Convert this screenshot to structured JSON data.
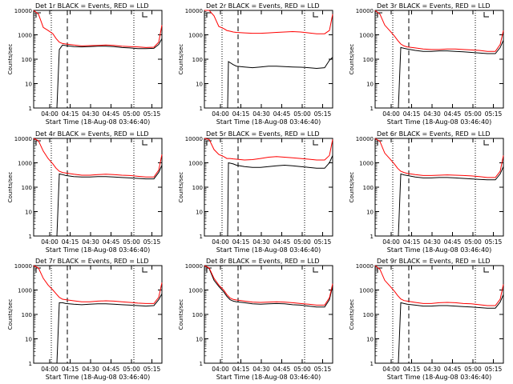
{
  "xaxis_label": "Start Time (18-Aug-08 03:46:40)",
  "ylabel": "Counts/sec",
  "title_suffix": "BLACK = Events, RED = LLD",
  "y_ticks": [
    "1",
    "10",
    "100",
    "1000",
    "10000"
  ],
  "colors": {
    "events": "#000000",
    "lld": "#ff0000"
  },
  "chart_data": [
    {
      "type": "line",
      "title": "Det 1r BLACK = Events, RED = LLD",
      "x_ticks": [
        "04:00",
        "04:15",
        "04:30",
        "04:45",
        "05:00",
        "05:15"
      ],
      "ylim": [
        1,
        10000
      ],
      "yscale": "log",
      "series": [
        {
          "name": "Events",
          "x": [
            14.5,
            16,
            18,
            20,
            25,
            30,
            35,
            40,
            45,
            50,
            55,
            60,
            65,
            70,
            75,
            78,
            80
          ],
          "y": [
            1,
            250,
            380,
            360,
            330,
            320,
            330,
            340,
            340,
            330,
            300,
            290,
            270,
            270,
            280,
            400,
            700
          ]
        },
        {
          "name": "LLD",
          "x": [
            0,
            3,
            6,
            9,
            12,
            14,
            16,
            18,
            20,
            25,
            30,
            35,
            40,
            45,
            50,
            55,
            60,
            65,
            70,
            75,
            78,
            80
          ],
          "y": [
            10000,
            7000,
            2000,
            1500,
            1100,
            700,
            500,
            440,
            420,
            380,
            350,
            360,
            370,
            380,
            370,
            340,
            330,
            320,
            300,
            310,
            500,
            2500
          ]
        }
      ]
    },
    {
      "type": "line",
      "title": "Det 2r BLACK = Events, RED = LLD",
      "x_ticks": [
        "04:00",
        "04:15",
        "04:30",
        "04:45",
        "05:00",
        "05:15"
      ],
      "ylim": [
        1,
        10000
      ],
      "yscale": "log",
      "series": [
        {
          "name": "Events",
          "x": [
            14.5,
            15,
            18,
            20,
            25,
            30,
            35,
            40,
            45,
            50,
            55,
            60,
            65,
            70,
            75,
            78,
            80
          ],
          "y": [
            1,
            80,
            60,
            52,
            48,
            45,
            48,
            52,
            52,
            50,
            48,
            47,
            45,
            42,
            45,
            90,
            120
          ]
        },
        {
          "name": "LLD",
          "x": [
            0,
            3,
            6,
            9,
            12,
            14,
            16,
            18,
            20,
            25,
            30,
            35,
            40,
            45,
            50,
            55,
            60,
            65,
            70,
            75,
            78,
            80
          ],
          "y": [
            10000,
            10000,
            6000,
            2200,
            1800,
            1500,
            1400,
            1300,
            1250,
            1200,
            1150,
            1150,
            1200,
            1250,
            1300,
            1350,
            1300,
            1200,
            1100,
            1100,
            1500,
            7000
          ]
        }
      ]
    },
    {
      "type": "line",
      "title": "Det 3r BLACK = Events, RED = LLD",
      "x_ticks": [
        "04:00",
        "04:15",
        "04:30",
        "04:45",
        "05:00",
        "05:15"
      ],
      "ylim": [
        1,
        10000
      ],
      "yscale": "log",
      "series": [
        {
          "name": "Events",
          "x": [
            14.5,
            16,
            18,
            20,
            25,
            30,
            35,
            40,
            45,
            50,
            55,
            60,
            65,
            70,
            75,
            78,
            80
          ],
          "y": [
            1,
            300,
            280,
            260,
            230,
            210,
            210,
            220,
            220,
            210,
            200,
            190,
            180,
            170,
            170,
            300,
            600
          ]
        },
        {
          "name": "LLD",
          "x": [
            0,
            3,
            6,
            9,
            12,
            14,
            16,
            18,
            20,
            25,
            30,
            35,
            40,
            45,
            50,
            55,
            60,
            65,
            70,
            75,
            78,
            80
          ],
          "y": [
            10000,
            7000,
            2500,
            1500,
            900,
            600,
            420,
            350,
            320,
            290,
            260,
            250,
            250,
            260,
            260,
            250,
            240,
            230,
            210,
            210,
            400,
            1500
          ]
        }
      ]
    },
    {
      "type": "line",
      "title": "Det 4r BLACK = Events, RED = LLD",
      "x_ticks": [
        "04:00",
        "04:15",
        "04:30",
        "04:45",
        "05:00",
        "05:15"
      ],
      "ylim": [
        1,
        10000
      ],
      "yscale": "log",
      "series": [
        {
          "name": "Events",
          "x": [
            14.5,
            16,
            18,
            20,
            25,
            30,
            35,
            40,
            45,
            50,
            55,
            60,
            65,
            70,
            75,
            78,
            80
          ],
          "y": [
            1,
            350,
            330,
            300,
            270,
            260,
            260,
            270,
            270,
            260,
            250,
            240,
            230,
            220,
            220,
            400,
            800
          ]
        },
        {
          "name": "LLD",
          "x": [
            0,
            3,
            6,
            9,
            12,
            14,
            16,
            18,
            20,
            25,
            30,
            35,
            40,
            45,
            50,
            55,
            60,
            65,
            70,
            75,
            78,
            80
          ],
          "y": [
            10000,
            8000,
            3000,
            1500,
            900,
            600,
            450,
            400,
            380,
            340,
            310,
            310,
            330,
            340,
            330,
            310,
            300,
            280,
            260,
            260,
            500,
            2200
          ]
        }
      ]
    },
    {
      "type": "line",
      "title": "Det 5r BLACK = Events, RED = LLD",
      "x_ticks": [
        "04:00",
        "04:15",
        "04:30",
        "04:45",
        "05:00",
        "05:15"
      ],
      "ylim": [
        1,
        10000
      ],
      "yscale": "log",
      "series": [
        {
          "name": "Events",
          "x": [
            14.5,
            15,
            18,
            20,
            25,
            30,
            35,
            40,
            45,
            50,
            55,
            60,
            65,
            70,
            75,
            78,
            80
          ],
          "y": [
            1,
            1000,
            900,
            800,
            700,
            650,
            650,
            700,
            750,
            800,
            750,
            700,
            650,
            600,
            600,
            1000,
            2000
          ]
        },
        {
          "name": "LLD",
          "x": [
            0,
            3,
            6,
            9,
            12,
            14,
            16,
            18,
            20,
            25,
            30,
            35,
            40,
            45,
            50,
            55,
            60,
            65,
            70,
            75,
            78,
            80
          ],
          "y": [
            10000,
            9000,
            3500,
            2200,
            1800,
            1500,
            1500,
            1450,
            1400,
            1300,
            1350,
            1500,
            1700,
            1800,
            1700,
            1600,
            1500,
            1400,
            1300,
            1300,
            2000,
            9000
          ]
        }
      ]
    },
    {
      "type": "line",
      "title": "Det 6r BLACK = Events, RED = LLD",
      "x_ticks": [
        "04:00",
        "04:15",
        "04:30",
        "04:45",
        "05:00",
        "05:15"
      ],
      "ylim": [
        1,
        10000
      ],
      "yscale": "log",
      "series": [
        {
          "name": "Events",
          "x": [
            14.5,
            16,
            18,
            20,
            25,
            30,
            35,
            40,
            45,
            50,
            55,
            60,
            65,
            70,
            75,
            78,
            80
          ],
          "y": [
            1,
            350,
            320,
            300,
            260,
            240,
            240,
            250,
            250,
            240,
            230,
            220,
            210,
            200,
            200,
            350,
            700
          ]
        },
        {
          "name": "LLD",
          "x": [
            0,
            3,
            6,
            9,
            12,
            14,
            16,
            18,
            20,
            25,
            30,
            35,
            40,
            45,
            50,
            55,
            60,
            65,
            70,
            75,
            78,
            80
          ],
          "y": [
            10000,
            7500,
            2500,
            1500,
            900,
            600,
            450,
            400,
            370,
            330,
            300,
            300,
            310,
            320,
            310,
            300,
            290,
            270,
            250,
            250,
            450,
            2000
          ]
        }
      ]
    },
    {
      "type": "line",
      "title": "Det 7r BLACK = Events, RED = LLD",
      "x_ticks": [
        "04:00",
        "04:15",
        "04:30",
        "04:45",
        "05:00",
        "05:15"
      ],
      "ylim": [
        1,
        10000
      ],
      "yscale": "log",
      "series": [
        {
          "name": "Events",
          "x": [
            14.5,
            16,
            18,
            20,
            25,
            30,
            35,
            40,
            45,
            50,
            55,
            60,
            65,
            70,
            75,
            78,
            80
          ],
          "y": [
            1,
            300,
            300,
            280,
            260,
            250,
            260,
            270,
            270,
            260,
            250,
            240,
            230,
            220,
            230,
            400,
            700
          ]
        },
        {
          "name": "LLD",
          "x": [
            0,
            3,
            6,
            9,
            12,
            14,
            16,
            18,
            20,
            25,
            30,
            35,
            40,
            45,
            50,
            55,
            60,
            65,
            70,
            75,
            78,
            80
          ],
          "y": [
            10000,
            8000,
            3000,
            1600,
            1000,
            700,
            500,
            420,
            400,
            360,
            330,
            330,
            350,
            360,
            350,
            330,
            310,
            290,
            280,
            280,
            500,
            2000
          ]
        }
      ]
    },
    {
      "type": "line",
      "title": "Det 8r BLACK = Events, RED = LLD",
      "x_ticks": [
        "04:00",
        "04:15",
        "04:30",
        "04:45",
        "05:00",
        "05:15"
      ],
      "ylim": [
        1,
        10000
      ],
      "yscale": "log",
      "series": [
        {
          "name": "Events",
          "x": [
            0,
            3,
            6,
            9,
            12,
            14,
            16,
            18,
            20,
            25,
            30,
            35,
            40,
            45,
            50,
            55,
            60,
            65,
            70,
            75,
            78,
            80
          ],
          "y": [
            10000,
            7500,
            2500,
            1400,
            850,
            550,
            400,
            350,
            330,
            300,
            270,
            260,
            270,
            280,
            270,
            250,
            240,
            220,
            200,
            200,
            400,
            1500
          ]
        },
        {
          "name": "LLD",
          "x": [
            0,
            3,
            6,
            9,
            12,
            14,
            16,
            18,
            20,
            25,
            30,
            35,
            40,
            45,
            50,
            55,
            60,
            65,
            70,
            75,
            78,
            80
          ],
          "y": [
            10000,
            8000,
            3000,
            1600,
            1000,
            650,
            470,
            410,
            390,
            350,
            320,
            310,
            320,
            330,
            320,
            300,
            280,
            260,
            240,
            240,
            480,
            1800
          ]
        }
      ]
    },
    {
      "type": "line",
      "title": "Det 9r BLACK = Events, RED = LLD",
      "x_ticks": [
        "04:00",
        "04:15",
        "04:30",
        "04:45",
        "05:00",
        "05:15"
      ],
      "ylim": [
        1,
        10000
      ],
      "yscale": "log",
      "series": [
        {
          "name": "Events",
          "x": [
            14.5,
            16,
            18,
            20,
            25,
            30,
            35,
            40,
            45,
            50,
            55,
            60,
            65,
            70,
            75,
            78,
            80
          ],
          "y": [
            1,
            300,
            280,
            260,
            240,
            220,
            220,
            230,
            230,
            220,
            210,
            200,
            190,
            180,
            180,
            320,
            650
          ]
        },
        {
          "name": "LLD",
          "x": [
            0,
            3,
            6,
            9,
            12,
            14,
            16,
            18,
            20,
            25,
            30,
            35,
            40,
            45,
            50,
            55,
            60,
            65,
            70,
            75,
            78,
            80
          ],
          "y": [
            10000,
            7000,
            2500,
            1500,
            900,
            600,
            430,
            370,
            350,
            310,
            280,
            280,
            300,
            310,
            300,
            280,
            270,
            250,
            230,
            230,
            420,
            1700
          ]
        }
      ]
    }
  ]
}
